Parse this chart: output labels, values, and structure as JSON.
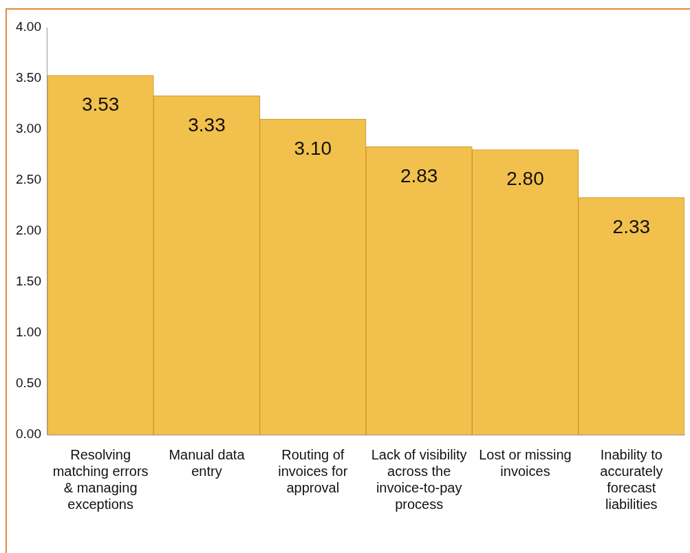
{
  "chart_data": {
    "type": "bar",
    "categories": [
      "Resolving matching errors & managing exceptions",
      "Manual data entry",
      "Routing of invoices for approval",
      "Lack of visibility across the invoice-to-pay process",
      "Lost or missing invoices",
      "Inability to accurately forecast liabilities"
    ],
    "values": [
      3.53,
      3.33,
      3.1,
      2.83,
      2.8,
      2.33
    ],
    "color": "#f2c04c",
    "ylim": [
      0,
      4
    ],
    "yticks": [
      {
        "value": 0,
        "label": "0.00"
      },
      {
        "value": 0.5,
        "label": "0.50"
      },
      {
        "value": 1,
        "label": "1.00"
      },
      {
        "value": 1.5,
        "label": "1.50"
      },
      {
        "value": 2,
        "label": "2.00"
      },
      {
        "value": 2.5,
        "label": "2.50"
      },
      {
        "value": 3,
        "label": "3.00"
      },
      {
        "value": 3.5,
        "label": "3.50"
      },
      {
        "value": 4,
        "label": "4.00"
      }
    ],
    "value_labels": [
      "3.53",
      "3.33",
      "3.10",
      "2.83",
      "2.80",
      "2.33"
    ],
    "grid": false,
    "legend": false
  }
}
